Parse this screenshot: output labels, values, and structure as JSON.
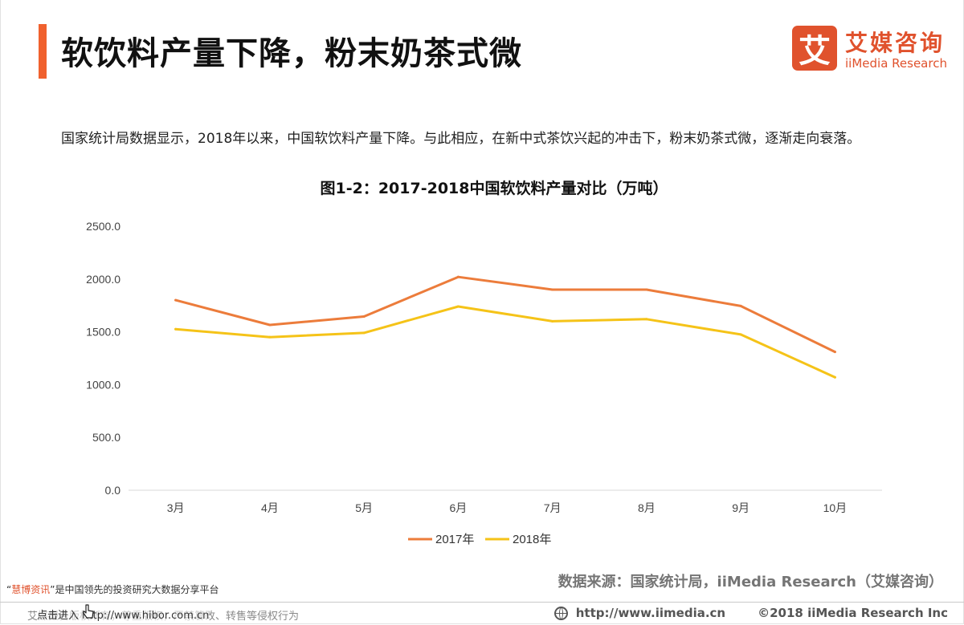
{
  "header": {
    "title": "软饮料产量下降，粉末奶茶式微",
    "logo": {
      "mark": "艾",
      "name_cn": "艾媒咨询",
      "name_en": "iiMedia Research"
    }
  },
  "intro_text": "国家统计局数据显示，2018年以来，中国软饮料产量下降。与此相应，在新中式茶饮兴起的冲击下，粉末奶茶式微，逐渐走向衰落。",
  "chart_data": {
    "type": "line",
    "title": "图1-2：2017-2018中国软饮料产量对比（万吨）",
    "categories": [
      "3月",
      "4月",
      "5月",
      "6月",
      "7月",
      "8月",
      "9月",
      "10月"
    ],
    "y_ticks": [
      "0.0",
      "500.0",
      "1000.0",
      "1500.0",
      "2000.0",
      "2500.0"
    ],
    "ylim": [
      0,
      2500
    ],
    "grid": false,
    "legend_position": "bottom-center",
    "series": [
      {
        "name": "2017年",
        "color": "#ec7c3b",
        "values": [
          1800,
          1565,
          1645,
          2020,
          1900,
          1900,
          1745,
          1310
        ]
      },
      {
        "name": "2018年",
        "color": "#f5c318",
        "values": [
          1525,
          1450,
          1490,
          1740,
          1600,
          1620,
          1475,
          1070
        ]
      }
    ]
  },
  "footer": {
    "source": "数据来源：国家统计局，iiMedia Research（艾媒咨询）",
    "platform_note": {
      "highlight": "慧博资讯",
      "open_quote": "“",
      "close_quote": "”",
      "rest": "是中国领先的投资研究大数据分享平台"
    },
    "entry_link": "点击进入 http://www.hibor.com.cn",
    "copyright_note": "艾媒报告版权所有，尊重版权，严禁篡改、转售等侵权行为",
    "website": "http://www.iimedia.cn",
    "copyright": "©2018  iiMedia Research  Inc"
  }
}
